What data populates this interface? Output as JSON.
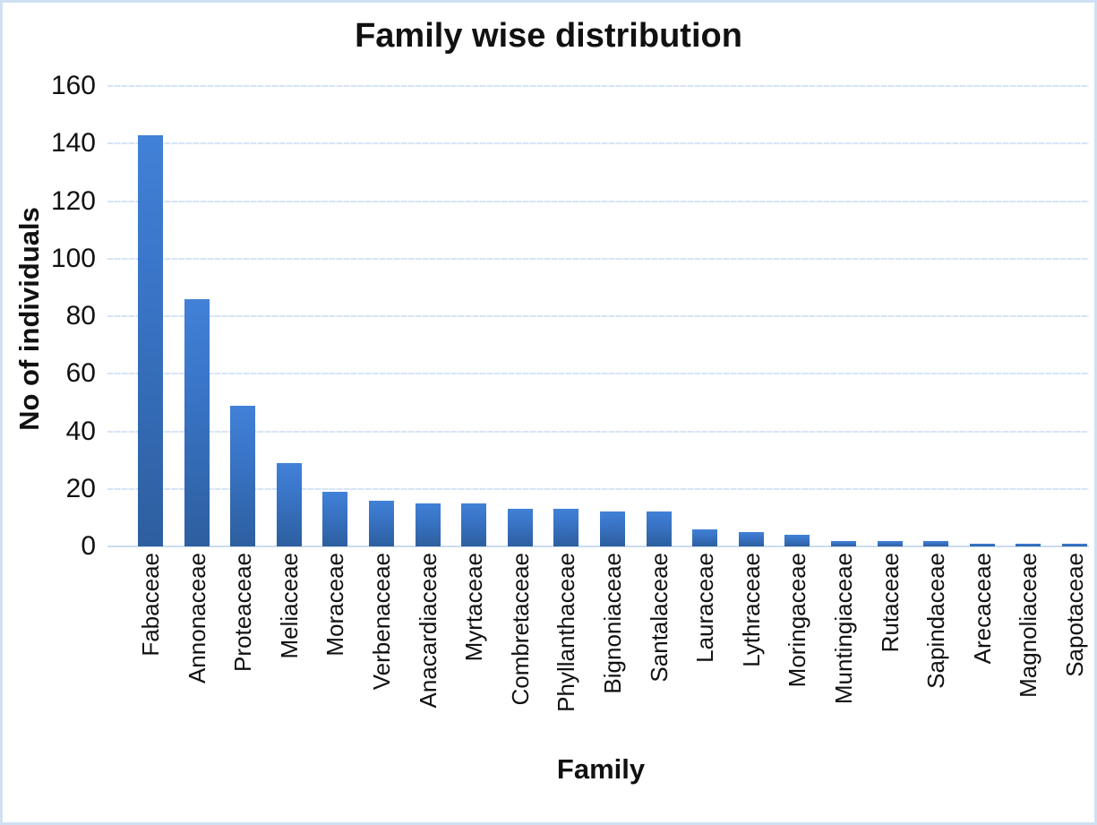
{
  "chart_data": {
    "type": "bar",
    "title": "Family wise distribution",
    "xlabel": "Family",
    "ylabel": "No of individuals",
    "categories": [
      "Fabaceae",
      "Annonaceae",
      "Proteaceae",
      "Meliaceae",
      "Moraceae",
      "Verbenaceae",
      "Anacardiaceae",
      "Myrtaceae",
      "Combretaceae",
      "Phyllanthaceae",
      "Bignoniaceae",
      "Santalaceae",
      "Lauraceae",
      "Lythraceae",
      "Moringaceae",
      "Muntingiaceae",
      "Rutaceae",
      "Sapindaceae",
      "Arecaceae",
      "Magnoliaceae",
      "Sapotaceae"
    ],
    "values": [
      143,
      86,
      49,
      29,
      19,
      16,
      15,
      15,
      13,
      13,
      12,
      12,
      6,
      5,
      4,
      2,
      2,
      2,
      1,
      1,
      1
    ],
    "ylim": [
      0,
      160
    ],
    "yticks": [
      0,
      20,
      40,
      60,
      80,
      100,
      120,
      140,
      160
    ],
    "grid": true,
    "legend": false,
    "colors": {
      "bar_top": "#4181d7",
      "bar_bottom": "#2d5f9f",
      "gridline": "#d6e4f6",
      "axis_line": "#c9dcf2",
      "border": "#cfe0f3",
      "text": "#111111"
    }
  }
}
